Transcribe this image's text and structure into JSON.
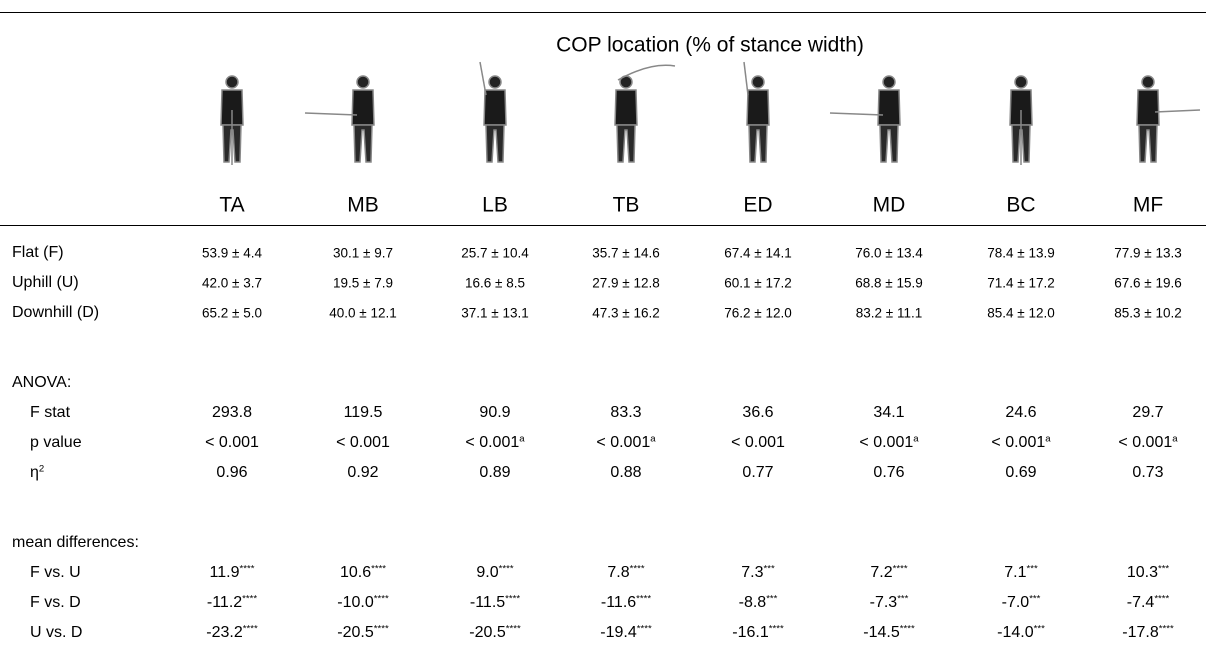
{
  "table": {
    "title": "COP location (% of stance width)",
    "columns": [
      "TA",
      "MB",
      "LB",
      "TB",
      "ED",
      "MD",
      "BC",
      "MF"
    ],
    "sections": [
      {
        "rows": [
          {
            "label": "Flat (F)",
            "cells": [
              "53.9 ± 4.4",
              "30.1 ± 9.7",
              "25.7 ± 10.4",
              "35.7 ± 14.6",
              "67.4 ± 14.1",
              "76.0 ± 13.4",
              "78.4 ± 13.9",
              "77.9 ± 13.3"
            ]
          },
          {
            "label": "Uphill (U)",
            "cells": [
              "42.0 ± 3.7",
              "19.5 ± 7.9",
              "16.6 ± 8.5",
              "27.9 ± 12.8",
              "60.1 ± 17.2",
              "68.8 ± 15.9",
              "71.4 ± 17.2",
              "67.6 ± 19.6"
            ]
          },
          {
            "label": "Downhill (D)",
            "cells": [
              "65.2 ± 5.0",
              "40.0 ± 12.1",
              "37.1 ± 13.1",
              "47.3 ± 16.2",
              "76.2 ± 12.0",
              "83.2 ± 11.1",
              "85.4 ± 12.0",
              "85.3 ± 10.2"
            ]
          }
        ]
      },
      {
        "heading": "ANOVA:",
        "rows": [
          {
            "label": "F stat",
            "cells": [
              "293.8",
              "119.5",
              "90.9",
              "83.3",
              "36.6",
              "34.1",
              "24.6",
              "29.7"
            ]
          },
          {
            "label": "p value",
            "cells": [
              "< 0.001",
              "< 0.001",
              {
                "text": "< 0.001",
                "sup": "a"
              },
              {
                "text": "< 0.001",
                "sup": "a"
              },
              "< 0.001",
              {
                "text": "< 0.001",
                "sup": "a"
              },
              {
                "text": "< 0.001",
                "sup": "a"
              },
              {
                "text": "< 0.001",
                "sup": "a"
              }
            ]
          },
          {
            "label": {
              "text": "η",
              "sup": "2"
            },
            "cells": [
              "0.96",
              "0.92",
              "0.89",
              "0.88",
              "0.77",
              "0.76",
              "0.69",
              "0.73"
            ]
          }
        ]
      },
      {
        "heading": "mean differences:",
        "rows": [
          {
            "label": "F vs. U",
            "cells": [
              {
                "text": "11.9",
                "sup": "****"
              },
              {
                "text": "10.6",
                "sup": "****"
              },
              {
                "text": "9.0",
                "sup": "****"
              },
              {
                "text": "7.8",
                "sup": "****"
              },
              {
                "text": "7.3",
                "sup": "***"
              },
              {
                "text": "7.2",
                "sup": "****"
              },
              {
                "text": "7.1",
                "sup": "***"
              },
              {
                "text": "10.3",
                "sup": "***"
              }
            ]
          },
          {
            "label": "F vs. D",
            "cells": [
              {
                "text": "-11.2",
                "sup": "****"
              },
              {
                "text": "-10.0",
                "sup": "****"
              },
              {
                "text": "-11.5",
                "sup": "****"
              },
              {
                "text": "-11.6",
                "sup": "****"
              },
              {
                "text": "-8.8",
                "sup": "***"
              },
              {
                "text": "-7.3",
                "sup": "***"
              },
              {
                "text": "-7.0",
                "sup": "***"
              },
              {
                "text": "-7.4",
                "sup": "****"
              }
            ]
          },
          {
            "label": "U vs. D",
            "cells": [
              {
                "text": "-23.2",
                "sup": "****"
              },
              {
                "text": "-20.5",
                "sup": "****"
              },
              {
                "text": "-20.5",
                "sup": "****"
              },
              {
                "text": "-19.4",
                "sup": "****"
              },
              {
                "text": "-16.1",
                "sup": "****"
              },
              {
                "text": "-14.5",
                "sup": "****"
              },
              {
                "text": "-14.0",
                "sup": "***"
              },
              {
                "text": "-17.8",
                "sup": "****"
              }
            ]
          }
        ]
      }
    ]
  }
}
